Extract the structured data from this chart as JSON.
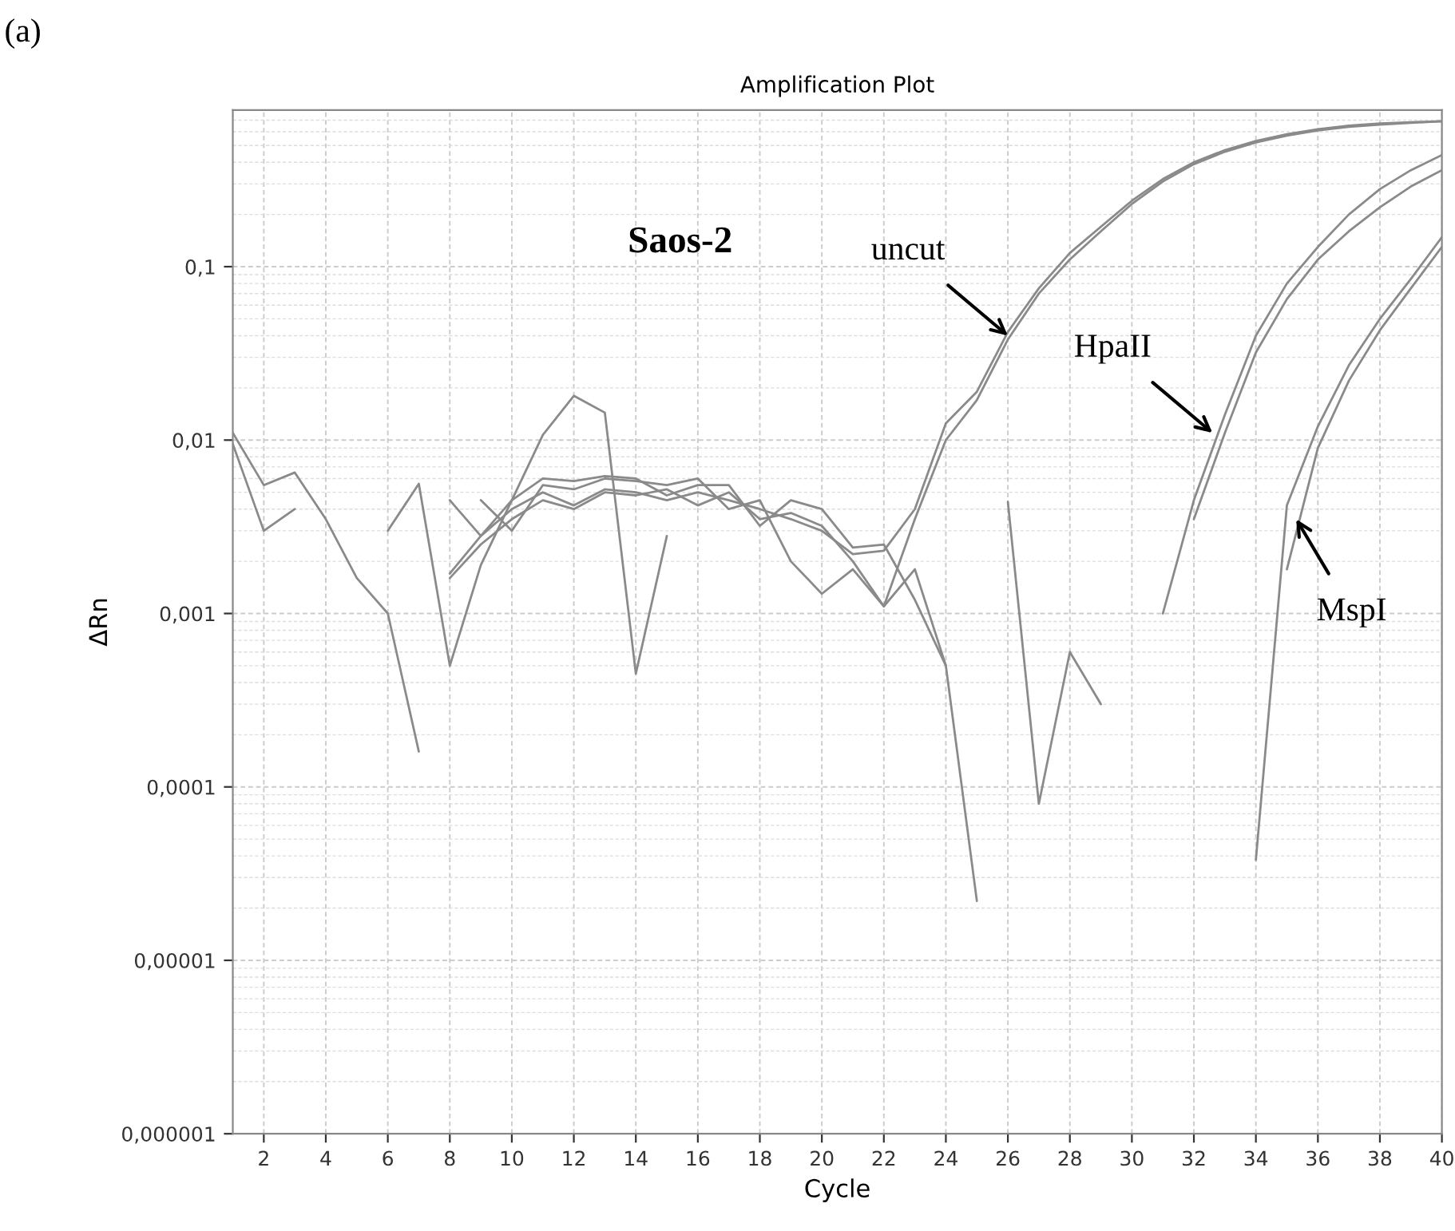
{
  "chart_data": {
    "type": "line",
    "title": "Amplification Plot",
    "xlabel": "Cycle",
    "ylabel": "ΔRn",
    "x": [
      1,
      2,
      3,
      4,
      5,
      6,
      7,
      8,
      9,
      10,
      11,
      12,
      13,
      14,
      15,
      16,
      17,
      18,
      19,
      20,
      21,
      22,
      23,
      24,
      25,
      26,
      27,
      28,
      29,
      30,
      31,
      32,
      33,
      34,
      35,
      36,
      37,
      38,
      39,
      40
    ],
    "series": [
      {
        "color": "#8a8a8a",
        "values": [
          0.011,
          0.0055,
          0.0065,
          0.0035,
          0.0016,
          0.001,
          0.00016,
          null,
          null,
          null,
          null,
          null,
          null,
          null,
          null,
          null,
          null,
          null,
          null,
          null,
          null,
          null,
          null,
          null,
          null,
          null,
          null,
          null,
          null,
          null,
          null,
          null,
          null,
          null,
          null,
          null,
          null,
          null,
          null,
          null
        ]
      },
      {
        "color": "#8a8a8a",
        "values": [
          0.0095,
          0.003,
          0.004,
          null,
          null,
          null,
          null,
          null,
          null,
          null,
          null,
          null,
          null,
          null,
          null,
          null,
          null,
          null,
          null,
          null,
          null,
          null,
          null,
          null,
          null,
          null,
          null,
          null,
          null,
          null,
          null,
          null,
          null,
          null,
          null,
          null,
          null,
          null,
          null,
          null
        ]
      },
      {
        "color": "#8a8a8a",
        "values": [
          null,
          null,
          null,
          null,
          null,
          0.003,
          0.0056,
          0.0005,
          0.0019,
          0.0045,
          0.0107,
          0.018,
          0.0144,
          0.00045,
          0.0028,
          null,
          null,
          null,
          null,
          null,
          null,
          null,
          null,
          null,
          null,
          null,
          null,
          null,
          null,
          null,
          null,
          null,
          null,
          null,
          null,
          null,
          null,
          null,
          null,
          null
        ]
      },
      {
        "color": "#8a8a8a",
        "values": [
          null,
          null,
          null,
          null,
          null,
          null,
          null,
          0.0017,
          0.0028,
          0.004,
          0.005,
          0.0042,
          0.0052,
          0.005,
          0.0045,
          0.005,
          0.0045,
          0.004,
          0.0035,
          0.003,
          0.0022,
          0.0023,
          0.004,
          0.0125,
          0.019,
          0.042,
          0.075,
          0.12,
          0.17,
          0.24,
          0.32,
          0.4,
          0.47,
          0.53,
          0.58,
          0.62,
          0.65,
          0.67,
          0.68,
          0.69
        ]
      },
      {
        "color": "#8a8a8a",
        "values": [
          null,
          null,
          null,
          null,
          null,
          null,
          null,
          0.0016,
          0.0025,
          0.0035,
          0.0045,
          0.004,
          0.005,
          0.0048,
          0.0052,
          0.0042,
          0.005,
          0.0035,
          0.0038,
          0.0032,
          0.002,
          0.0011,
          0.0035,
          0.01,
          0.017,
          0.038,
          0.07,
          0.11,
          0.16,
          0.23,
          0.31,
          0.39,
          0.46,
          0.52,
          0.57,
          0.61,
          0.64,
          0.66,
          0.675,
          0.69
        ]
      },
      {
        "color": "#8a8a8a",
        "values": [
          null,
          null,
          null,
          null,
          null,
          null,
          null,
          null,
          0.0045,
          0.003,
          0.0055,
          0.0052,
          0.006,
          0.0058,
          0.0055,
          0.006,
          0.004,
          0.0045,
          0.002,
          0.0013,
          0.0018,
          0.0011,
          0.0018,
          0.0005,
          2.2e-05,
          null,
          null,
          null,
          null,
          null,
          null,
          null,
          null,
          null,
          null,
          null,
          null,
          null,
          null,
          null
        ]
      },
      {
        "color": "#8a8a8a",
        "values": [
          null,
          null,
          null,
          null,
          null,
          null,
          null,
          0.0045,
          0.0028,
          0.0045,
          0.006,
          0.0058,
          0.0062,
          0.006,
          0.0048,
          0.0055,
          0.0055,
          0.0032,
          0.0045,
          0.004,
          0.0024,
          0.0025,
          0.0012,
          0.0005,
          null,
          null,
          null,
          null,
          null,
          null,
          null,
          null,
          null,
          null,
          null,
          null,
          null,
          null,
          null,
          null
        ]
      },
      {
        "color": "#8a8a8a",
        "values": [
          null,
          null,
          null,
          null,
          null,
          null,
          null,
          null,
          null,
          null,
          null,
          null,
          null,
          null,
          null,
          null,
          null,
          null,
          null,
          null,
          null,
          null,
          null,
          null,
          null,
          0.0044,
          8e-05,
          0.0006,
          0.0003,
          null,
          null,
          null,
          null,
          null,
          null,
          null,
          null,
          null,
          null,
          null
        ]
      },
      {
        "color": "#8a8a8a",
        "values": [
          null,
          null,
          null,
          null,
          null,
          null,
          null,
          null,
          null,
          null,
          null,
          null,
          null,
          null,
          null,
          null,
          null,
          null,
          null,
          null,
          null,
          null,
          null,
          null,
          null,
          null,
          null,
          null,
          null,
          null,
          0.001,
          0.0045,
          0.014,
          0.04,
          0.08,
          0.13,
          0.2,
          0.28,
          0.36,
          0.44
        ]
      },
      {
        "color": "#8a8a8a",
        "values": [
          null,
          null,
          null,
          null,
          null,
          null,
          null,
          null,
          null,
          null,
          null,
          null,
          null,
          null,
          null,
          null,
          null,
          null,
          null,
          null,
          null,
          null,
          null,
          null,
          null,
          null,
          null,
          null,
          null,
          null,
          null,
          0.0035,
          0.011,
          0.032,
          0.065,
          0.11,
          0.16,
          0.22,
          0.29,
          0.36
        ]
      },
      {
        "color": "#8a8a8a",
        "values": [
          null,
          null,
          null,
          null,
          null,
          null,
          null,
          null,
          null,
          null,
          null,
          null,
          null,
          null,
          null,
          null,
          null,
          null,
          null,
          null,
          null,
          null,
          null,
          null,
          null,
          null,
          null,
          null,
          null,
          null,
          null,
          null,
          null,
          3.8e-05,
          0.0042,
          0.012,
          0.027,
          0.05,
          0.085,
          0.148
        ]
      },
      {
        "color": "#8a8a8a",
        "values": [
          null,
          null,
          null,
          null,
          null,
          null,
          null,
          null,
          null,
          null,
          null,
          null,
          null,
          null,
          null,
          null,
          null,
          null,
          null,
          null,
          null,
          null,
          null,
          null,
          null,
          null,
          null,
          null,
          null,
          null,
          null,
          null,
          null,
          null,
          0.0018,
          0.009,
          0.022,
          0.043,
          0.075,
          0.13
        ]
      }
    ],
    "log": "y",
    "xlim": [
      1,
      40
    ],
    "ylim": [
      1e-06,
      0.8
    ],
    "xticks": [
      2,
      4,
      6,
      8,
      10,
      12,
      14,
      16,
      18,
      20,
      22,
      24,
      26,
      28,
      30,
      32,
      34,
      36,
      38,
      40
    ],
    "yticks": [
      {
        "value": 1e-06,
        "label": "0,000001"
      },
      {
        "value": 1e-05,
        "label": "0,00001"
      },
      {
        "value": 0.0001,
        "label": "0,0001"
      },
      {
        "value": 0.001,
        "label": "0,001"
      },
      {
        "value": 0.01,
        "label": "0,01"
      },
      {
        "value": 0.1,
        "label": "0,1"
      }
    ],
    "grid": true,
    "marker": "none",
    "line_style": "solid",
    "annotations": [
      "(a)",
      "Saos-2",
      {
        "text": "uncut",
        "x": 26,
        "y": 0.04
      },
      {
        "text": "HpaII",
        "x": 32.6,
        "y": 0.011
      },
      {
        "text": "MspI",
        "x": 35.3,
        "y": 0.0035
      }
    ]
  }
}
